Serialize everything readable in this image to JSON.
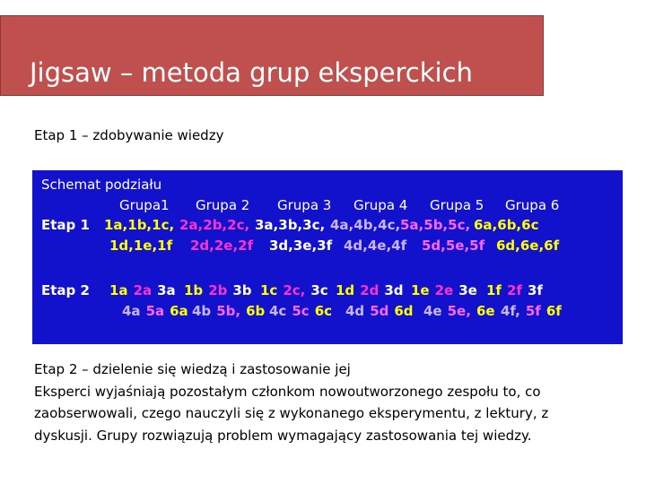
{
  "header": {
    "title": "Jigsaw – metoda grup eksperckich"
  },
  "section1": {
    "heading": "Etap 1 – zdobywanie wiedzy"
  },
  "diagram": {
    "caption": "Schemat podziału",
    "columns": [
      "Grupa1",
      "Grupa 2",
      "Grupa 3",
      "Grupa 4",
      "Grupa 5",
      "Grupa 6"
    ],
    "rows": [
      {
        "label": "Etap 1",
        "lines": [
          [
            [
              {
                "text": "1a,1b,1c,",
                "color": "#ffff00"
              }
            ],
            [
              {
                "text": "2a,2b,2c,",
                "color": "#ff33cc"
              }
            ],
            [
              {
                "text": "3a,3b,3c,",
                "color": "#ffffff"
              }
            ],
            [
              {
                "text": "4a,4b,4c,",
                "color": "#c8b4ff"
              }
            ],
            [
              {
                "text": "5a,5b,5c,",
                "color": "#ff66ff"
              }
            ],
            [
              {
                "text": "6a,6b,6c",
                "color": "#ffff00"
              }
            ]
          ],
          [
            [
              {
                "text": "1d,1e,1f",
                "color": "#ffff00"
              }
            ],
            [
              {
                "text": "2d,2e,2f",
                "color": "#ff33cc"
              }
            ],
            [
              {
                "text": "3d,3e,3f",
                "color": "#ffffff"
              }
            ],
            [
              {
                "text": "4d,4e,4f",
                "color": "#c8b4ff"
              }
            ],
            [
              {
                "text": "5d,5e,5f",
                "color": "#ff66ff"
              }
            ],
            [
              {
                "text": "6d,6e,6f",
                "color": "#ffff00"
              }
            ]
          ]
        ]
      },
      {
        "label": "Etap 2",
        "lines": [
          [
            [
              {
                "text": "1a",
                "color": "#ffff00"
              },
              {
                "text": "2a",
                "color": "#ff33cc"
              },
              {
                "text": "3a",
                "color": "#ffffff"
              }
            ],
            [
              {
                "text": "1b",
                "color": "#ffff00"
              },
              {
                "text": "2b",
                "color": "#ff33cc"
              },
              {
                "text": "3b",
                "color": "#ffffff"
              }
            ],
            [
              {
                "text": "1c",
                "color": "#ffff00"
              },
              {
                "text": "2c,",
                "color": "#ff33cc"
              },
              {
                "text": "3c",
                "color": "#ffffff"
              }
            ],
            [
              {
                "text": "1d",
                "color": "#ffff00"
              },
              {
                "text": "2d",
                "color": "#ff33cc"
              },
              {
                "text": "3d",
                "color": "#ffffff"
              }
            ],
            [
              {
                "text": "1e",
                "color": "#ffff00"
              },
              {
                "text": "2e",
                "color": "#ff33cc"
              },
              {
                "text": "3e",
                "color": "#ffffff"
              }
            ],
            [
              {
                "text": "1f",
                "color": "#ffff00"
              },
              {
                "text": "2f",
                "color": "#ff33cc"
              },
              {
                "text": "3f",
                "color": "#ffffff"
              }
            ]
          ],
          [
            [
              {
                "text": "4a",
                "color": "#c8b4ff"
              },
              {
                "text": "5a",
                "color": "#ff66ff"
              },
              {
                "text": "6a",
                "color": "#ffff00"
              }
            ],
            [
              {
                "text": "4b",
                "color": "#c8b4ff"
              },
              {
                "text": "5b,",
                "color": "#ff66ff"
              },
              {
                "text": "6b",
                "color": "#ffff00"
              }
            ],
            [
              {
                "text": "4c",
                "color": "#c8b4ff"
              },
              {
                "text": "5c",
                "color": "#ff66ff"
              },
              {
                "text": "6c",
                "color": "#ffff00"
              }
            ],
            [
              {
                "text": "4d",
                "color": "#c8b4ff"
              },
              {
                "text": "5d",
                "color": "#ff66ff"
              },
              {
                "text": "6d",
                "color": "#ffff00"
              }
            ],
            [
              {
                "text": "4e",
                "color": "#c8b4ff"
              },
              {
                "text": "5e,",
                "color": "#ff66ff"
              },
              {
                "text": "6e",
                "color": "#ffff00"
              }
            ],
            [
              {
                "text": "4f,",
                "color": "#c8b4ff"
              },
              {
                "text": "5f",
                "color": "#ff66ff"
              },
              {
                "text": "6f",
                "color": "#ffff00"
              }
            ]
          ]
        ]
      }
    ]
  },
  "section2": {
    "heading": "Etap 2 – dzielenie się wiedzą i zastosowanie jej",
    "lines": [
      "Eksperci wyjaśniają pozostałym członkom nowoutworzonego zespołu to, co",
      "zaobserwowali, czego nauczyli się z wykonanego eksperymentu, z lektury, z",
      "dyskusji. Grupy rozwiązują problem wymagający zastosowania tej wiedzy."
    ]
  }
}
